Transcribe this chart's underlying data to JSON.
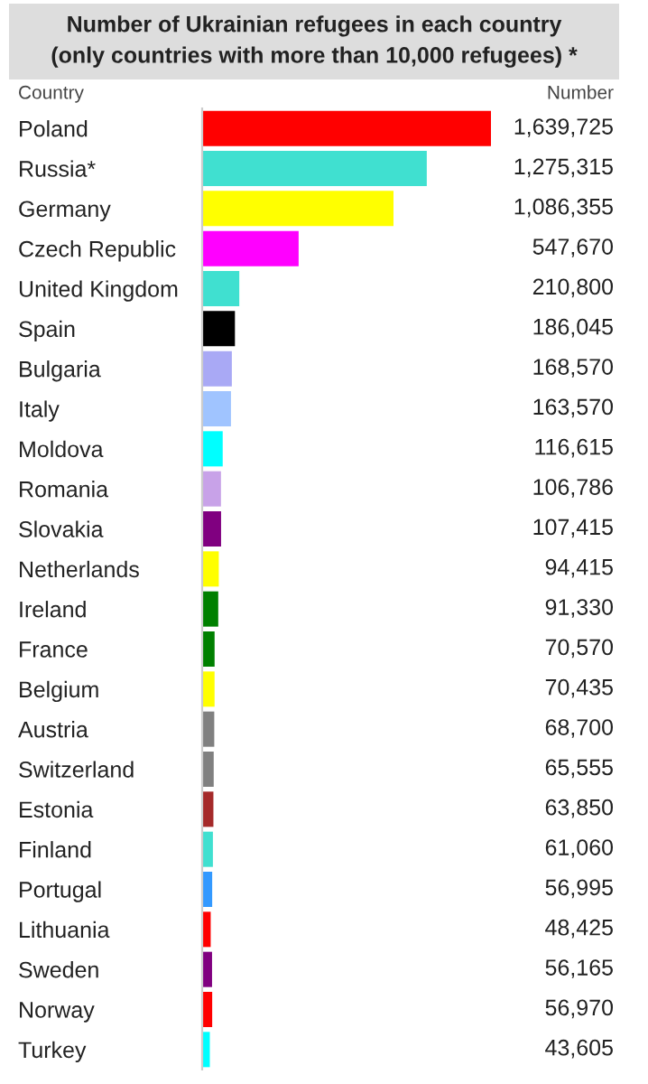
{
  "chart_data": {
    "type": "bar",
    "orientation": "horizontal",
    "title": "Number of Ukrainian refugees in each country\n(only countries with more than 10,000 refugees) *",
    "ylabel": "Country",
    "annotations": [
      "Number"
    ],
    "categories": [
      "Poland",
      "Russia*",
      "Germany",
      "Czech Republic",
      "United Kingdom",
      "Spain",
      "Bulgaria",
      "Italy",
      "Moldova",
      "Romania",
      "Slovakia",
      "Netherlands",
      "Ireland",
      "France",
      "Belgium",
      "Austria",
      "Switzerland",
      "Estonia",
      "Finland",
      "Portugal",
      "Lithuania",
      "Sweden",
      "Norway",
      "Turkey"
    ],
    "values": [
      1639725,
      1275315,
      1086355,
      547670,
      210800,
      186045,
      168570,
      163570,
      116615,
      106786,
      107415,
      94415,
      91330,
      70570,
      70435,
      68700,
      65555,
      63850,
      61060,
      56995,
      48425,
      56165,
      56970,
      43605
    ],
    "value_labels": [
      "1,639,725",
      "1,275,315",
      "1,086,355",
      "547,670",
      "210,800",
      "186,045",
      "168,570",
      "163,570",
      "116,615",
      "106,786",
      "107,415",
      "94,415",
      "91,330",
      "70,570",
      "70,435",
      "68,700",
      "65,555",
      "63,850",
      "61,060",
      "56,995",
      "48,425",
      "56,165",
      "56,970",
      "43,605"
    ],
    "colors": [
      "#ff0000",
      "#40e0d0",
      "#ffff00",
      "#ff00ff",
      "#40e0d0",
      "#000000",
      "#a9a9f5",
      "#a0c4ff",
      "#00ffff",
      "#c8a2e8",
      "#800080",
      "#ffff00",
      "#008000",
      "#008000",
      "#ffff00",
      "#808080",
      "#808080",
      "#a52a2a",
      "#40e0d0",
      "#3399ff",
      "#ff0000",
      "#800080",
      "#ff0000",
      "#00ffff"
    ],
    "grid": false,
    "legend": false
  }
}
